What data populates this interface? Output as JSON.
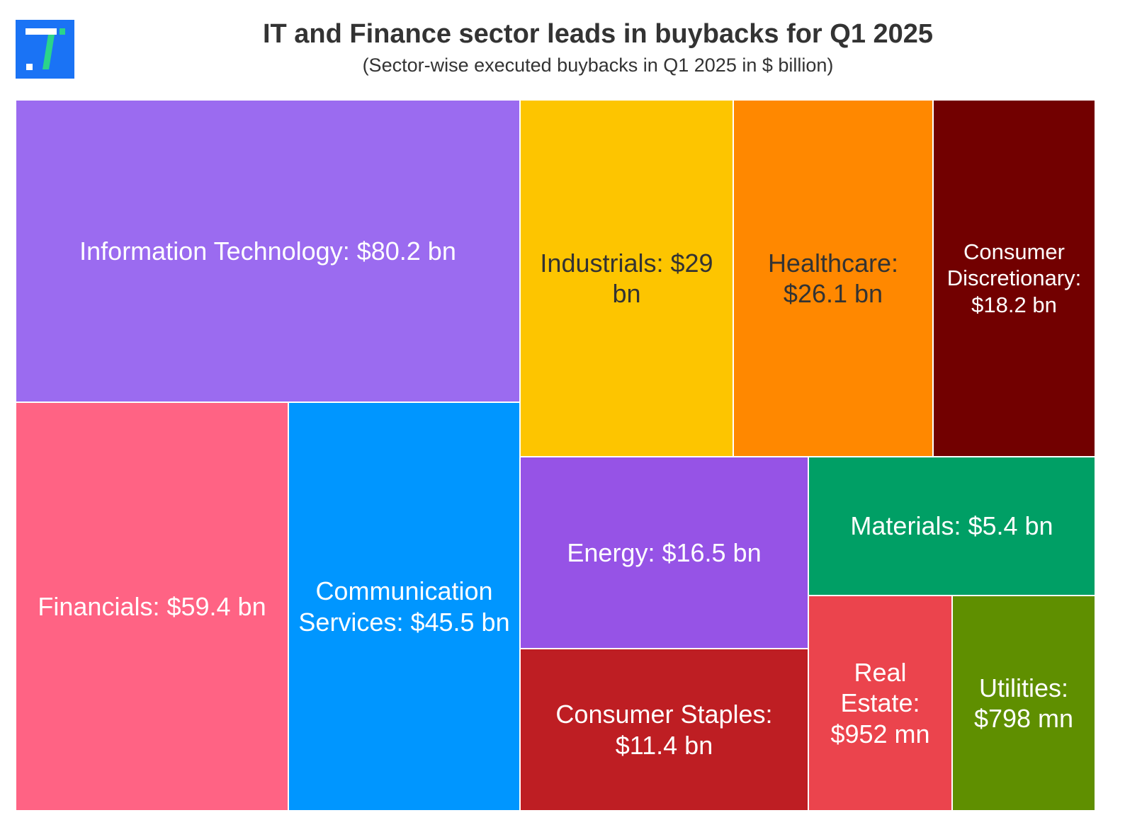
{
  "header": {
    "title": "IT and Finance sector leads in buybacks for Q1 2025",
    "subtitle": "(Sector-wise executed buybacks in Q1 2025 in $ billion)"
  },
  "logo": {
    "icon": "brand-logo-icon",
    "color": "#1a73f5",
    "accent": "#2bd48a"
  },
  "chart_data": {
    "type": "treemap",
    "title": "IT and Finance sector leads in buybacks for Q1 2025",
    "subtitle": "(Sector-wise executed buybacks in Q1 2025 in $ billion)",
    "unit": "$ billion",
    "items": [
      {
        "name": "Information Technology",
        "value": 80.2,
        "label": "Information Technology: $80.2 bn",
        "color": "#9b6bf0",
        "text_color": "#ffffff"
      },
      {
        "name": "Financials",
        "value": 59.4,
        "label": "Financials: $59.4 bn",
        "color": "#ff6384",
        "text_color": "#ffffff"
      },
      {
        "name": "Communication Services",
        "value": 45.5,
        "label": "Communication Services: $45.5 bn",
        "color": "#0096ff",
        "text_color": "#ffffff"
      },
      {
        "name": "Industrials",
        "value": 29,
        "label": "Industrials: $29 bn",
        "color": "#fdc500",
        "text_color": "#333333"
      },
      {
        "name": "Healthcare",
        "value": 26.1,
        "label": "Healthcare: $26.1 bn",
        "color": "#ff8800",
        "text_color": "#333333"
      },
      {
        "name": "Consumer Discretionary",
        "value": 18.2,
        "label": "Consumer Discretionary: $18.2 bn",
        "color": "#720000",
        "text_color": "#ffffff"
      },
      {
        "name": "Energy",
        "value": 16.5,
        "label": "Energy: $16.5 bn",
        "color": "#9653e6",
        "text_color": "#ffffff"
      },
      {
        "name": "Consumer Staples",
        "value": 11.4,
        "label": "Consumer Staples: $11.4 bn",
        "color": "#be1e23",
        "text_color": "#ffffff"
      },
      {
        "name": "Materials",
        "value": 5.4,
        "label": "Materials: $5.4 bn",
        "color": "#009f65",
        "text_color": "#ffffff"
      },
      {
        "name": "Real Estate",
        "value": 0.952,
        "label": "Real Estate: $952 mn",
        "color": "#eb444d",
        "text_color": "#ffffff"
      },
      {
        "name": "Utilities",
        "value": 0.798,
        "label": "Utilities: $798 mn",
        "color": "#5f8f00",
        "text_color": "#ffffff"
      }
    ]
  }
}
